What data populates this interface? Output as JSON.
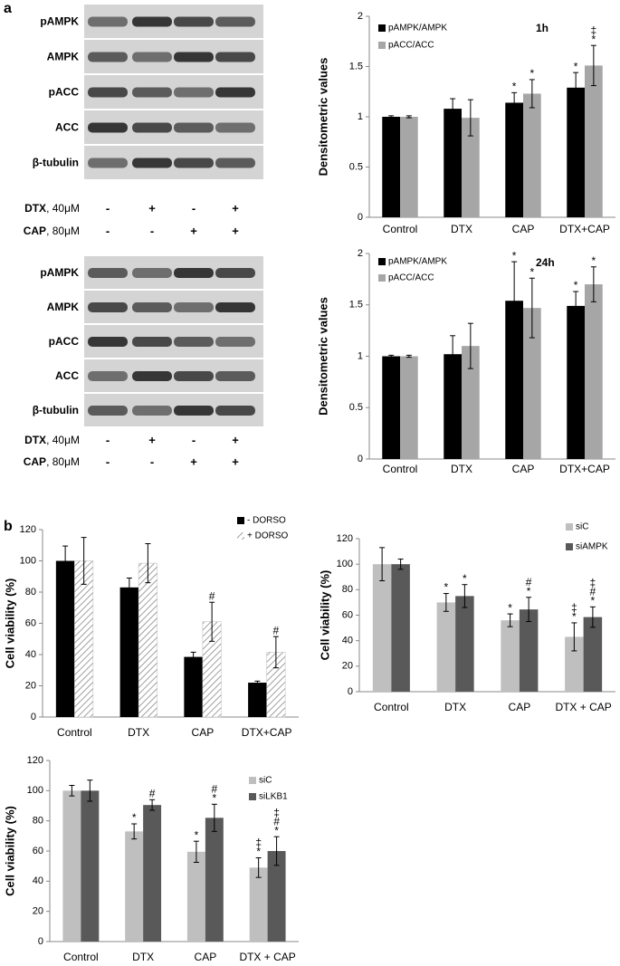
{
  "panel_labels": [
    "a",
    "b"
  ],
  "blots": [
    {
      "rows": [
        "pAMPK",
        "AMPK",
        "pACC",
        "ACC",
        "β-tubulin"
      ],
      "treatments": [
        {
          "name": "DTX",
          "dose": ", 40μM",
          "signs": [
            "-",
            "+",
            "-",
            "+"
          ]
        },
        {
          "name": "CAP",
          "dose": ", 80μM",
          "signs": [
            "-",
            "-",
            "+",
            "+"
          ]
        }
      ]
    },
    {
      "rows": [
        "pAMPK",
        "AMPK",
        "pACC",
        "ACC",
        "β-tubulin"
      ],
      "treatments": [
        {
          "name": "DTX",
          "dose": ", 40μM",
          "signs": [
            "-",
            "+",
            "-",
            "+"
          ]
        },
        {
          "name": "CAP",
          "dose": ", 80μM",
          "signs": [
            "-",
            "-",
            "+",
            "+"
          ]
        }
      ]
    }
  ],
  "chart_data": [
    {
      "type": "bar",
      "title": "1h",
      "y_label": "Densitometric values",
      "categories": [
        "Control",
        "DTX",
        "CAP",
        "DTX+CAP"
      ],
      "ylim": [
        0,
        2
      ],
      "yticks": [
        0,
        0.5,
        1,
        1.5,
        2
      ],
      "series": [
        {
          "name": "pAMPK/AMPK",
          "color": "#000000",
          "values": [
            1,
            1.08,
            1.14,
            1.29
          ],
          "errors": [
            0.01,
            0.1,
            0.1,
            0.15
          ],
          "annotations": [
            [],
            [],
            [
              "*"
            ],
            [
              "*"
            ]
          ]
        },
        {
          "name": "pACC/ACC",
          "color": "#a6a6a6",
          "values": [
            1,
            0.99,
            1.23,
            1.51
          ],
          "errors": [
            0.01,
            0.18,
            0.14,
            0.2
          ],
          "annotations": [
            [],
            [],
            [
              "*"
            ],
            [
              "‡",
              "*"
            ]
          ]
        }
      ]
    },
    {
      "type": "bar",
      "title": "24h",
      "y_label": "Densitometric values",
      "categories": [
        "Control",
        "DTX",
        "CAP",
        "DTX+CAP"
      ],
      "ylim": [
        0,
        2
      ],
      "yticks": [
        0,
        0.5,
        1,
        1.5,
        2
      ],
      "series": [
        {
          "name": "pAMPK/AMPK",
          "color": "#000000",
          "values": [
            1,
            1.02,
            1.54,
            1.49
          ],
          "errors": [
            0.01,
            0.18,
            0.38,
            0.14
          ],
          "annotations": [
            [],
            [],
            [
              "*"
            ],
            [
              "*"
            ]
          ]
        },
        {
          "name": "pACC/ACC",
          "color": "#a6a6a6",
          "values": [
            1,
            1.1,
            1.47,
            1.7
          ],
          "errors": [
            0.01,
            0.22,
            0.29,
            0.17
          ],
          "annotations": [
            [],
            [],
            [
              "*"
            ],
            [
              "*"
            ]
          ]
        }
      ]
    },
    {
      "type": "bar",
      "y_label": "Cell viability (%)",
      "categories": [
        "Control",
        "DTX",
        "CAP",
        "DTX+CAP"
      ],
      "ylim": [
        0,
        120
      ],
      "yticks": [
        0,
        20,
        40,
        60,
        80,
        100,
        120
      ],
      "series": [
        {
          "name": "- DORSO",
          "color": "#000000",
          "values": [
            100,
            83,
            38.5,
            22
          ],
          "errors": [
            9.5,
            6,
            3,
            1
          ],
          "annotations": [
            [],
            [],
            [],
            []
          ]
        },
        {
          "name": "+ DORSO",
          "color": "#a0a0a0",
          "hatch": true,
          "values": [
            100,
            98.5,
            61,
            41.5
          ],
          "errors": [
            15,
            12.5,
            12.5,
            10
          ],
          "annotations": [
            [],
            [],
            [
              "#"
            ],
            [
              "#"
            ]
          ]
        }
      ]
    },
    {
      "type": "bar",
      "y_label": "Cell viability (%)",
      "categories": [
        "Control",
        "DTX",
        "CAP",
        "DTX + CAP"
      ],
      "ylim": [
        0,
        120
      ],
      "yticks": [
        0,
        20,
        40,
        60,
        80,
        100,
        120
      ],
      "series": [
        {
          "name": "siC",
          "color": "#bfbfbf",
          "values": [
            100,
            70,
            56,
            43
          ],
          "errors": [
            13,
            7,
            5,
            11
          ],
          "annotations": [
            [],
            [
              "*"
            ],
            [
              "*"
            ],
            [
              "‡",
              "*"
            ]
          ]
        },
        {
          "name": "siAMPK",
          "color": "#595959",
          "values": [
            100,
            75,
            64.5,
            58.5
          ],
          "errors": [
            4,
            9,
            9.5,
            8
          ],
          "annotations": [
            [],
            [
              "*"
            ],
            [
              "#",
              "*"
            ],
            [
              "‡",
              "#",
              "*"
            ]
          ]
        }
      ]
    },
    {
      "type": "bar",
      "y_label": "Cell viability (%)",
      "categories": [
        "Control",
        "DTX",
        "CAP",
        "DTX + CAP"
      ],
      "ylim": [
        0,
        120
      ],
      "yticks": [
        0,
        20,
        40,
        60,
        80,
        100,
        120
      ],
      "series": [
        {
          "name": "siC",
          "color": "#bfbfbf",
          "values": [
            100,
            73,
            59.5,
            49
          ],
          "errors": [
            3.5,
            5,
            7,
            6.5
          ],
          "annotations": [
            [],
            [
              "*"
            ],
            [
              "*"
            ],
            [
              "‡",
              "*"
            ]
          ]
        },
        {
          "name": "siLKB1",
          "color": "#595959",
          "values": [
            100,
            90.5,
            82,
            60
          ],
          "errors": [
            7,
            3.5,
            9,
            9.5
          ],
          "annotations": [
            [],
            [
              "#"
            ],
            [
              "#",
              "*"
            ],
            [
              "‡",
              "#",
              "*"
            ]
          ]
        }
      ]
    }
  ]
}
